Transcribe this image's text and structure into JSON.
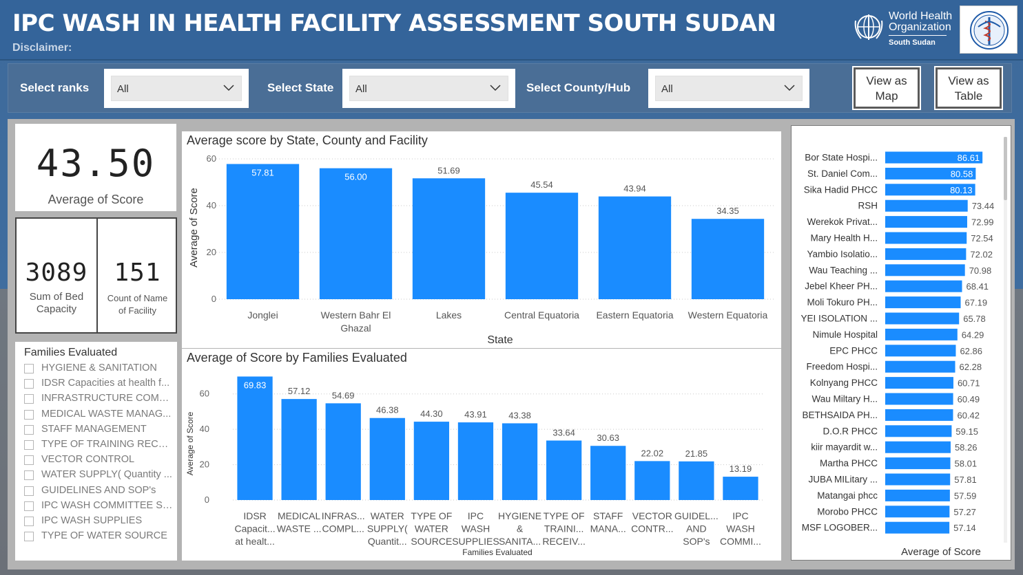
{
  "header": {
    "title": "IPC WASH IN HEALTH FACILITY ASSESSMENT SOUTH SUDAN",
    "disclaimer": "Disclaimer:",
    "who_line1": "World Health",
    "who_line2": "Organization",
    "who_sub": "South Sudan"
  },
  "filters": {
    "ranks_label": "Select ranks",
    "ranks_value": "All",
    "state_label": "Select State",
    "state_value": "All",
    "county_label": "Select County/Hub",
    "county_value": "All",
    "view_map_line1": "View as",
    "view_map_line2": "Map",
    "view_table_line1": "View as",
    "view_table_line2": "Table"
  },
  "kpis": {
    "avg_score": "43.50",
    "avg_score_label": "Average of Score",
    "bed_capacity": "3089",
    "bed_label_1": "Sum of Bed",
    "bed_label_2": "Capacity",
    "facility_count": "151",
    "facility_label_1": "Count of Name",
    "facility_label_2": "of Facility"
  },
  "slicer": {
    "title": "Families Evaluated",
    "items": [
      "HYGIENE & SANITATION",
      "IDSR Capacities at health f...",
      "INFRASTRUCTURE COMPL...",
      "MEDICAL WASTE MANAG...",
      "STAFF MANAGEMENT",
      "TYPE OF TRAINING RECEI...",
      "VECTOR CONTROL",
      "WATER SUPPLY( Quantity ...",
      "GUIDELINES AND SOP's",
      "IPC WASH COMMITTEE ST...",
      "IPC WASH SUPPLIES",
      "TYPE OF WATER SOURCE"
    ]
  },
  "colors": {
    "bar": "#1a8cff",
    "header_bg": "#34649a",
    "filter_bg": "#4a6e96"
  },
  "chart_data": [
    {
      "type": "bar",
      "title": "Average score by State, County and Facility",
      "xlabel": "State",
      "ylabel": "Average of Score",
      "ylim": [
        0,
        60
      ],
      "yticks": [
        0,
        20,
        40,
        60
      ],
      "grid": true,
      "categories": [
        [
          "Jonglei"
        ],
        [
          "Western Bahr El",
          "Ghazal"
        ],
        [
          "Lakes"
        ],
        [
          "Central Equatoria"
        ],
        [
          "Eastern Equatoria"
        ],
        [
          "Western Equatoria"
        ]
      ],
      "values": [
        57.81,
        56.0,
        51.69,
        45.54,
        43.94,
        34.35
      ],
      "labels": [
        "57.81",
        "56.00",
        "51.69",
        "45.54",
        "43.94",
        "34.35"
      ]
    },
    {
      "type": "bar",
      "title": "Average of Score by Families Evaluated",
      "xlabel": "Families Evaluated",
      "ylabel": "Average of Score",
      "ylim": [
        0,
        70
      ],
      "yticks": [
        0,
        20,
        40,
        60
      ],
      "grid": true,
      "categories": [
        [
          "IDSR",
          "Capacit...",
          "at healt..."
        ],
        [
          "MEDICAL",
          "WASTE ..."
        ],
        [
          "INFRAS...",
          "COMPL..."
        ],
        [
          "WATER",
          "SUPPLY(",
          "Quantit..."
        ],
        [
          "TYPE OF",
          "WATER",
          "SOURCE"
        ],
        [
          "IPC",
          "WASH",
          "SUPPLIES"
        ],
        [
          "HYGIENE",
          "&",
          "SANITA..."
        ],
        [
          "TYPE OF",
          "TRAINI...",
          "RECEIV..."
        ],
        [
          "STAFF",
          "MANA..."
        ],
        [
          "VECTOR",
          "CONTR..."
        ],
        [
          "GUIDEL...",
          "AND",
          "SOP's"
        ],
        [
          "IPC",
          "WASH",
          "COMMI..."
        ]
      ],
      "values": [
        69.83,
        57.12,
        54.69,
        46.38,
        44.3,
        43.91,
        43.38,
        33.64,
        30.63,
        22.02,
        21.85,
        13.19
      ],
      "labels": [
        "69.83",
        "57.12",
        "54.69",
        "46.38",
        "44.30",
        "43.91",
        "43.38",
        "33.64",
        "30.63",
        "22.02",
        "21.85",
        "13.19"
      ]
    },
    {
      "type": "bar",
      "orientation": "horizontal",
      "xlabel": "Average of Score",
      "xlim": [
        0,
        100
      ],
      "categories": [
        "Bor State Hospi...",
        "St. Daniel Com...",
        "Sika Hadid PHCC",
        "RSH",
        "Werekok Privat...",
        "Mary Health H...",
        "Yambio Isolatio...",
        "Wau Teaching ...",
        "Jebel Kheer PH...",
        "Moli Tokuro PH...",
        "YEI ISOLATION ...",
        "Nimule Hospital",
        "EPC PHCC",
        "Freedom Hospi...",
        "Kolnyang PHCC",
        "Wau Miltary H...",
        "BETHSAIDA PH...",
        "D.O.R PHCC",
        "kiir mayardit w...",
        "Martha PHCC",
        "JUBA MILitary ...",
        "Matangai phcc",
        "Morobo PHCC",
        "MSF LOGOBER..."
      ],
      "values": [
        86.61,
        80.58,
        80.13,
        73.44,
        72.99,
        72.54,
        72.02,
        70.98,
        68.41,
        67.19,
        65.78,
        64.29,
        62.86,
        62.28,
        60.71,
        60.49,
        60.42,
        59.15,
        58.26,
        58.01,
        57.81,
        57.59,
        57.27,
        57.14
      ],
      "labels": [
        "86.61",
        "80.58",
        "80.13",
        "73.44",
        "72.99",
        "72.54",
        "72.02",
        "70.98",
        "68.41",
        "67.19",
        "65.78",
        "64.29",
        "62.86",
        "62.28",
        "60.71",
        "60.49",
        "60.42",
        "59.15",
        "58.26",
        "58.01",
        "57.81",
        "57.59",
        "57.27",
        "57.14"
      ]
    }
  ]
}
